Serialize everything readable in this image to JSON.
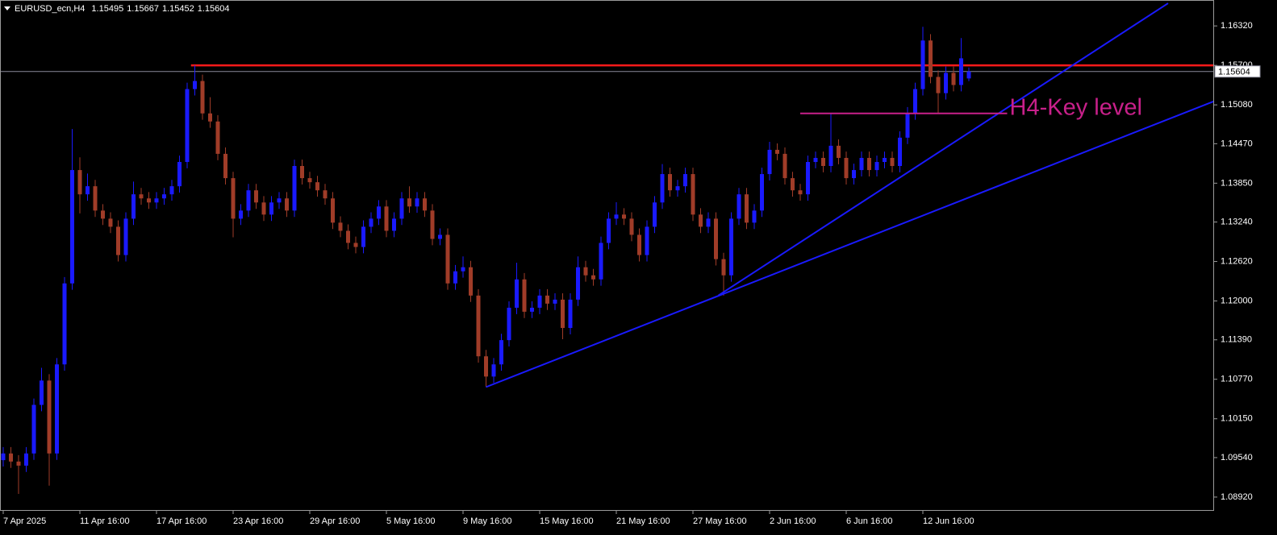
{
  "chart_data": {
    "type": "candlestick",
    "title": "EURUSD_ecn,H4",
    "up_color": "#1a1aff",
    "down_color": "#a03c28",
    "grid": false,
    "categories": [
      "7 Apr 2025",
      null,
      null,
      null,
      null,
      null,
      null,
      null,
      null,
      null,
      "11 Apr 16:00",
      null,
      null,
      null,
      null,
      null,
      null,
      null,
      null,
      null,
      "17 Apr 16:00",
      null,
      null,
      null,
      null,
      null,
      null,
      null,
      null,
      null,
      "23 Apr 16:00",
      null,
      null,
      null,
      null,
      null,
      null,
      null,
      null,
      null,
      "29 Apr 16:00",
      null,
      null,
      null,
      null,
      null,
      null,
      null,
      null,
      null,
      "5 May 16:00",
      null,
      null,
      null,
      null,
      null,
      null,
      null,
      null,
      null,
      "9 May 16:00",
      null,
      null,
      null,
      null,
      null,
      null,
      null,
      null,
      null,
      "15 May 16:00",
      null,
      null,
      null,
      null,
      null,
      null,
      null,
      null,
      null,
      "21 May 16:00",
      null,
      null,
      null,
      null,
      null,
      null,
      null,
      null,
      null,
      "27 May 16:00",
      null,
      null,
      null,
      null,
      null,
      null,
      null,
      null,
      null,
      "2 Jun 16:00",
      null,
      null,
      null,
      null,
      null,
      null,
      null,
      null,
      null,
      "6 Jun 16:00",
      null,
      null,
      null,
      null,
      null,
      null,
      null,
      null,
      null,
      "12 Jun 16:00",
      null,
      null,
      null,
      null,
      null,
      null
    ],
    "open": [
      1.095,
      1.09605,
      1.09478,
      1.09414,
      1.09605,
      1.10368,
      1.1075,
      1.09605,
      1.11004,
      1.12276,
      1.14056,
      1.13675,
      1.13802,
      1.1342,
      1.13293,
      1.13166,
      1.12721,
      1.13293,
      1.13675,
      1.13611,
      1.13547,
      1.13611,
      1.13675,
      1.13802,
      1.14183,
      1.15328,
      1.15455,
      1.14946,
      1.14819,
      1.14311,
      1.13929,
      1.13293,
      1.1342,
      1.13738,
      1.13547,
      1.13357,
      1.13547,
      1.13611,
      1.1342,
      1.1412,
      1.13929,
      1.13865,
      1.13738,
      1.13611,
      1.1323,
      1.13102,
      1.12912,
      1.12848,
      1.13166,
      1.13293,
      1.13484,
      1.13102,
      1.13293,
      1.13611,
      1.13484,
      1.13611,
      1.1342,
      1.12975,
      1.13039,
      1.12276,
      1.12466,
      1.1253,
      1.12085,
      1.11131,
      1.10813,
      1.11004,
      1.11385,
      1.11894,
      1.12339,
      1.11831,
      1.11894,
      1.12085,
      1.11958,
      1.12021,
      1.11576,
      1.12021,
      1.1253,
      1.12403,
      1.12339,
      1.12912,
      1.13293,
      1.13357,
      1.13293,
      1.13039,
      1.12721,
      1.13166,
      1.13547,
      1.13993,
      1.13738,
      1.13802,
      1.13993,
      1.13357,
      1.13166,
      1.13293,
      1.12657,
      1.12403,
      1.13293,
      1.13675,
      1.1323,
      1.1342,
      1.13993,
      1.14374,
      1.14311,
      1.13929,
      1.13738,
      1.13675,
      1.14183,
      1.14247,
      1.1412,
      1.14438,
      1.14247,
      1.13929,
      1.14056,
      1.14247,
      1.14056,
      1.14183,
      1.14247,
      1.1412,
      1.14565,
      1.14946,
      1.15328,
      1.16091,
      1.15519,
      1.15264,
      1.15582,
      1.15392,
      1.15495
    ],
    "high": [
      1.09705,
      1.09705,
      1.09578,
      1.09705,
      1.10468,
      1.1095,
      1.1085,
      1.11104,
      1.12376,
      1.147,
      1.14256,
      1.14002,
      1.13902,
      1.1352,
      1.13393,
      1.13266,
      1.13393,
      1.13875,
      1.13775,
      1.13711,
      1.13711,
      1.13775,
      1.13902,
      1.14283,
      1.15428,
      1.157,
      1.15555,
      1.152,
      1.14919,
      1.14411,
      1.14029,
      1.1352,
      1.13838,
      1.13838,
      1.13647,
      1.13647,
      1.13711,
      1.13711,
      1.1422,
      1.1422,
      1.14029,
      1.13965,
      1.13838,
      1.13711,
      1.1333,
      1.13202,
      1.13012,
      1.13266,
      1.13393,
      1.13584,
      1.13584,
      1.13393,
      1.13711,
      1.138,
      1.13711,
      1.13711,
      1.1352,
      1.13139,
      1.13139,
      1.12566,
      1.127,
      1.1263,
      1.12185,
      1.11231,
      1.11104,
      1.11485,
      1.11994,
      1.126,
      1.12439,
      1.11994,
      1.12185,
      1.12185,
      1.12121,
      1.12121,
      1.12121,
      1.127,
      1.1263,
      1.12503,
      1.13012,
      1.13393,
      1.1355,
      1.13457,
      1.13393,
      1.13139,
      1.13266,
      1.13647,
      1.1415,
      1.14093,
      1.13902,
      1.14093,
      1.14093,
      1.13457,
      1.13393,
      1.13393,
      1.12757,
      1.13393,
      1.13775,
      1.13775,
      1.1352,
      1.14093,
      1.145,
      1.14474,
      1.14411,
      1.14029,
      1.13838,
      1.14283,
      1.14347,
      1.14347,
      1.1495,
      1.14538,
      1.14347,
      1.14156,
      1.14347,
      1.14347,
      1.14283,
      1.14347,
      1.14347,
      1.14665,
      1.15046,
      1.15428,
      1.16307,
      1.16191,
      1.15619,
      1.15682,
      1.15682,
      1.16129,
      1.15667
    ],
    "low": [
      1.094,
      1.09378,
      1.0897,
      1.09314,
      1.09505,
      1.10268,
      1.091,
      1.09505,
      1.10904,
      1.12176,
      1.13375,
      1.13575,
      1.1332,
      1.13193,
      1.13066,
      1.12621,
      1.12621,
      1.13193,
      1.13511,
      1.13447,
      1.13447,
      1.13511,
      1.13575,
      1.13702,
      1.14083,
      1.15228,
      1.14846,
      1.14719,
      1.14211,
      1.13829,
      1.13,
      1.13193,
      1.1332,
      1.13447,
      1.13257,
      1.13257,
      1.13447,
      1.1332,
      1.1332,
      1.13829,
      1.13765,
      1.13638,
      1.13511,
      1.1313,
      1.13002,
      1.12812,
      1.12748,
      1.12748,
      1.13066,
      1.13193,
      1.13002,
      1.13002,
      1.13193,
      1.13384,
      1.13384,
      1.1332,
      1.12875,
      1.12875,
      1.12176,
      1.12176,
      1.12366,
      1.11985,
      1.11031,
      1.10648,
      1.10713,
      1.10904,
      1.11285,
      1.11794,
      1.11731,
      1.11731,
      1.11794,
      1.11858,
      1.11858,
      1.114,
      1.11476,
      1.11921,
      1.12303,
      1.12239,
      1.12239,
      1.12812,
      1.13193,
      1.13193,
      1.12939,
      1.12621,
      1.12621,
      1.13066,
      1.13447,
      1.13638,
      1.13638,
      1.13702,
      1.13257,
      1.13066,
      1.13066,
      1.12557,
      1.12085,
      1.12303,
      1.13193,
      1.1313,
      1.1313,
      1.1332,
      1.13893,
      1.14211,
      1.13829,
      1.13638,
      1.13575,
      1.13575,
      1.14083,
      1.1402,
      1.1402,
      1.14147,
      1.13829,
      1.13829,
      1.13956,
      1.13956,
      1.13956,
      1.14083,
      1.1402,
      1.1402,
      1.14465,
      1.14846,
      1.15228,
      1.15419,
      1.1495,
      1.15164,
      1.15292,
      1.15292,
      1.15452
    ],
    "close": [
      1.09605,
      1.09478,
      1.09414,
      1.09605,
      1.10368,
      1.1075,
      1.09605,
      1.11004,
      1.12276,
      1.14056,
      1.13675,
      1.13802,
      1.1342,
      1.13293,
      1.13166,
      1.12721,
      1.13293,
      1.13675,
      1.13611,
      1.13547,
      1.13611,
      1.13675,
      1.13802,
      1.14183,
      1.15328,
      1.15455,
      1.14946,
      1.14819,
      1.14311,
      1.13929,
      1.13293,
      1.1342,
      1.13738,
      1.13547,
      1.13357,
      1.13547,
      1.13611,
      1.1342,
      1.1412,
      1.13929,
      1.13865,
      1.13738,
      1.13611,
      1.1323,
      1.13102,
      1.12912,
      1.12848,
      1.13166,
      1.13293,
      1.13484,
      1.13102,
      1.13293,
      1.13611,
      1.13484,
      1.13611,
      1.1342,
      1.12975,
      1.13039,
      1.12276,
      1.12466,
      1.1253,
      1.12085,
      1.11131,
      1.10813,
      1.11004,
      1.11385,
      1.11894,
      1.12339,
      1.11831,
      1.11894,
      1.12085,
      1.11958,
      1.12021,
      1.11576,
      1.12021,
      1.1253,
      1.12403,
      1.12339,
      1.12912,
      1.13293,
      1.13357,
      1.13293,
      1.13039,
      1.12721,
      1.13166,
      1.13547,
      1.13993,
      1.13738,
      1.13802,
      1.13993,
      1.13357,
      1.13166,
      1.13293,
      1.12657,
      1.12403,
      1.13293,
      1.13675,
      1.1323,
      1.1342,
      1.13993,
      1.14374,
      1.14311,
      1.13929,
      1.13738,
      1.13675,
      1.14183,
      1.14247,
      1.1412,
      1.14438,
      1.14247,
      1.13929,
      1.14056,
      1.14247,
      1.14056,
      1.14183,
      1.14247,
      1.1412,
      1.14565,
      1.14946,
      1.15328,
      1.16091,
      1.15519,
      1.15264,
      1.15582,
      1.15392,
      1.15811,
      1.15604
    ],
    "ylim": [
      1.08704,
      1.16727
    ],
    "yticks": [
      {
        "value": 1.0892,
        "label": "1.08920"
      },
      {
        "value": 1.0954,
        "label": "1.09540"
      },
      {
        "value": 1.1015,
        "label": "1.10150"
      },
      {
        "value": 1.1077,
        "label": "1.10770"
      },
      {
        "value": 1.1139,
        "label": "1.11390"
      },
      {
        "value": 1.12,
        "label": "1.12000"
      },
      {
        "value": 1.1262,
        "label": "1.12620"
      },
      {
        "value": 1.1324,
        "label": "1.13240"
      },
      {
        "value": 1.1385,
        "label": "1.13850"
      },
      {
        "value": 1.1447,
        "label": "1.14470"
      },
      {
        "value": 1.1508,
        "label": "1.15080"
      },
      {
        "value": 1.157,
        "label": "1.15700"
      },
      {
        "value": 1.1632,
        "label": "1.16320"
      }
    ],
    "resistance": {
      "value": 1.157,
      "from": 24.5,
      "color": "#ff1a1a"
    },
    "key_level": {
      "label": "H4-Key level",
      "value": 1.14946,
      "from": 104,
      "to": 131,
      "color": "#c8208a"
    },
    "trendlines": [
      {
        "color": "#1a1aff",
        "points": [
          [
            63,
            1.10648
          ],
          [
            158,
            1.15137
          ]
        ]
      },
      {
        "color": "#1a1aff",
        "points": [
          [
            93.3,
            1.12085
          ],
          [
            152,
            1.16676
          ]
        ]
      }
    ]
  }
}
